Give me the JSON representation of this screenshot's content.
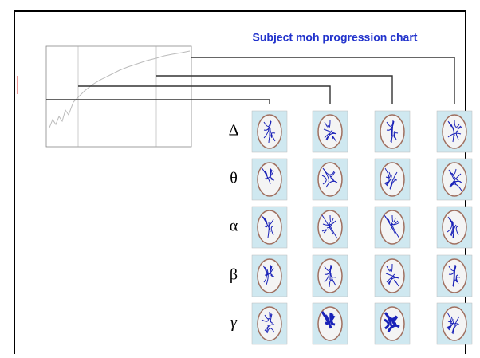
{
  "slide": {
    "title": "Subject moh progression chart",
    "bands": [
      "Δ",
      "θ",
      "α",
      "β",
      "γ"
    ]
  }
}
